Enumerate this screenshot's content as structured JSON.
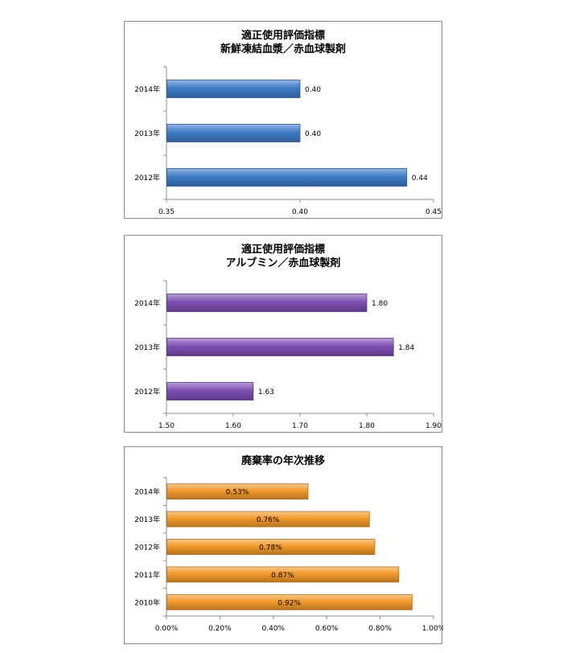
{
  "chart_data": [
    {
      "type": "bar",
      "orientation": "horizontal",
      "title": "適正使用評価指標",
      "subtitle": "新鮮凍結血漿／赤血球製剤",
      "categories": [
        "2014年",
        "2013年",
        "2012年"
      ],
      "values": [
        0.4,
        0.4,
        0.44
      ],
      "value_labels": [
        "0.40",
        "0.40",
        "0.44"
      ],
      "xlim": [
        0.35,
        0.45
      ],
      "x_ticks": [
        "0.35",
        "0.40",
        "0.45"
      ],
      "x_tick_values": [
        0.35,
        0.4,
        0.45
      ],
      "grid": false,
      "label_position": "outside",
      "color": "#3f7cc7"
    },
    {
      "type": "bar",
      "orientation": "horizontal",
      "title": "適正使用評価指標",
      "subtitle": "アルブミン／赤血球製剤",
      "categories": [
        "2014年",
        "2013年",
        "2012年"
      ],
      "values": [
        1.8,
        1.84,
        1.63
      ],
      "value_labels": [
        "1.80",
        "1.84",
        "1.63"
      ],
      "xlim": [
        1.5,
        1.9
      ],
      "x_ticks": [
        "1.50",
        "1.60",
        "1.70",
        "1.80",
        "1.90"
      ],
      "x_tick_values": [
        1.5,
        1.6,
        1.7,
        1.8,
        1.9
      ],
      "grid": false,
      "label_position": "outside",
      "color": "#7e4fb3"
    },
    {
      "type": "bar",
      "orientation": "horizontal",
      "title": "廃棄率の年次推移",
      "subtitle": "",
      "categories": [
        "2014年",
        "2013年",
        "2012年",
        "2011年",
        "2010年"
      ],
      "values": [
        0.53,
        0.76,
        0.78,
        0.87,
        0.92
      ],
      "value_labels": [
        "0.53%",
        "0.76%",
        "0.78%",
        "0.87%",
        "0.92%"
      ],
      "xlim": [
        0,
        1.0
      ],
      "x_ticks": [
        "0.00%",
        "0.20%",
        "0.40%",
        "0.60%",
        "0.80%",
        "1.00%"
      ],
      "x_tick_values": [
        0,
        0.2,
        0.4,
        0.6,
        0.8,
        1.0
      ],
      "grid": false,
      "label_position": "inside",
      "color": "#f39a2b"
    }
  ]
}
